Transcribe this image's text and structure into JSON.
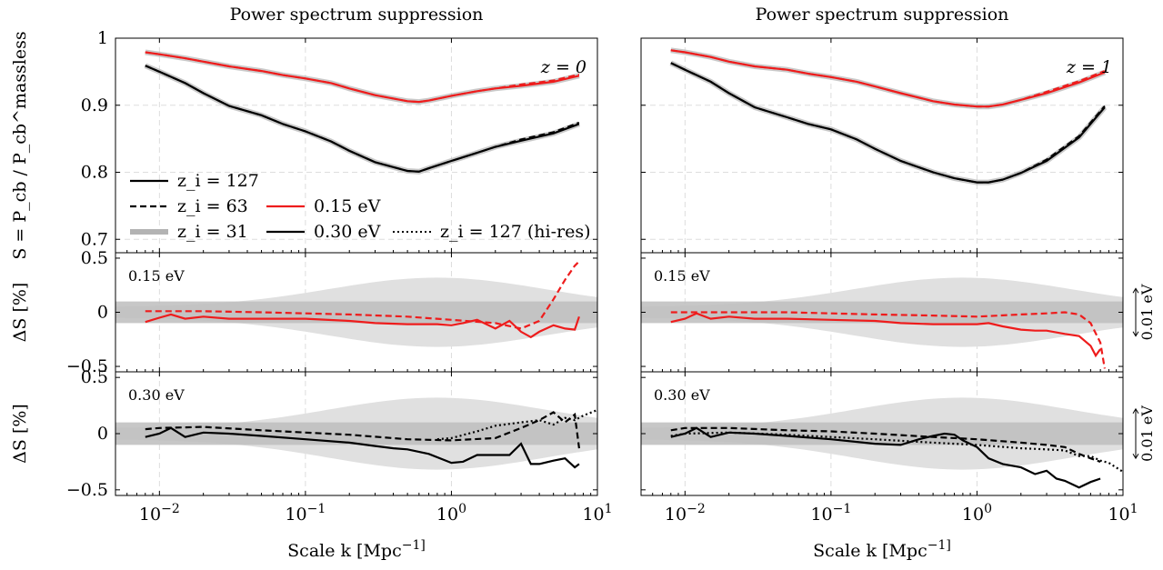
{
  "colors": {
    "red": "#ee1c1c",
    "black": "#000000",
    "gray_line": "#b3b3b3",
    "band_outer": "#e0e0e0",
    "band_inner": "#bdbdbd",
    "grid": "#dddddd"
  },
  "chart_data": [
    {
      "type": "line",
      "panel": "left",
      "title": "Power spectrum suppression",
      "xlabel": "Scale k [Mpc^-1]",
      "x_scale": "log",
      "xlim": [
        0.005,
        10
      ],
      "x_ticks": [
        "10^-2",
        "10^-1",
        "10^0",
        "10^1"
      ],
      "subplots": [
        {
          "ylabel": "S = P_cb / P_cb^massless",
          "ylim": [
            0.68,
            1.0
          ],
          "y_ticks": [
            "0.7",
            "0.8",
            "0.9",
            "1"
          ],
          "annotation": "z = 0",
          "legend_entries": [
            "z_i = 127",
            "z_i = 63",
            "z_i = 31",
            "0.15 eV",
            "0.30 eV",
            "z_i = 127 (hi-res)"
          ],
          "series": [
            {
              "x": [
                0.008,
                0.01,
                0.015,
                0.02,
                0.03,
                0.05,
                0.07,
                0.1,
                0.15,
                0.2,
                0.3,
                0.5,
                0.6,
                0.7,
                1.0,
                1.5,
                2,
                3,
                5,
                7.5
              ],
              "y": [
                0.979,
                0.976,
                0.97,
                0.965,
                0.958,
                0.951,
                0.945,
                0.94,
                0.933,
                0.925,
                0.915,
                0.906,
                0.905,
                0.907,
                0.914,
                0.921,
                0.925,
                0.929,
                0.935,
                0.944
              ]
            },
            {
              "x": [
                0.008,
                0.01,
                0.015,
                0.02,
                0.03,
                0.05,
                0.07,
                0.1,
                0.15,
                0.2,
                0.3,
                0.5,
                0.6,
                0.7,
                1.0,
                1.5,
                2,
                3,
                5,
                7.5
              ],
              "y": [
                0.959,
                0.95,
                0.933,
                0.918,
                0.899,
                0.885,
                0.872,
                0.861,
                0.846,
                0.832,
                0.815,
                0.802,
                0.801,
                0.806,
                0.817,
                0.829,
                0.838,
                0.847,
                0.858,
                0.872
              ]
            }
          ]
        },
        {
          "ylabel": "ΔS [%]",
          "ylim": [
            -0.55,
            0.55
          ],
          "y_ticks": [
            "0.5",
            "0",
            "−0.5"
          ],
          "annotation": "0.15 eV",
          "series": [
            {
              "name": "z_i = 127",
              "x": [
                0.008,
                0.01,
                0.012,
                0.015,
                0.02,
                0.03,
                0.05,
                0.1,
                0.2,
                0.3,
                0.5,
                0.8,
                1,
                1.2,
                1.5,
                2,
                2.5,
                3,
                3.5,
                4,
                5,
                6,
                7,
                7.5
              ],
              "y": [
                -0.09,
                -0.05,
                -0.02,
                -0.06,
                -0.04,
                -0.06,
                -0.06,
                -0.06,
                -0.08,
                -0.1,
                -0.11,
                -0.11,
                -0.12,
                -0.1,
                -0.07,
                -0.15,
                -0.08,
                -0.18,
                -0.23,
                -0.18,
                -0.12,
                -0.15,
                -0.16,
                -0.04
              ]
            },
            {
              "name": "z_i = 63",
              "x": [
                0.008,
                0.01,
                0.02,
                0.05,
                0.1,
                0.2,
                0.5,
                1,
                2,
                3,
                4,
                5,
                6,
                7,
                7.5
              ],
              "y": [
                0.01,
                0.01,
                0.01,
                0.0,
                -0.01,
                -0.02,
                -0.04,
                -0.07,
                -0.1,
                -0.15,
                -0.08,
                0.12,
                0.3,
                0.43,
                0.47
              ]
            }
          ]
        },
        {
          "ylabel": "ΔS [%]",
          "ylim": [
            -0.55,
            0.55
          ],
          "y_ticks": [
            "0.5",
            "0",
            "−0.5"
          ],
          "annotation": "0.30 eV",
          "series": [
            {
              "name": "z_i = 127",
              "x": [
                0.008,
                0.01,
                0.012,
                0.015,
                0.02,
                0.03,
                0.05,
                0.1,
                0.2,
                0.3,
                0.4,
                0.5,
                0.7,
                1,
                1.2,
                1.5,
                2,
                2.5,
                3,
                3.5,
                4,
                5,
                6,
                7,
                7.5
              ],
              "y": [
                -0.03,
                0.0,
                0.05,
                -0.03,
                0.01,
                0.0,
                -0.02,
                -0.05,
                -0.08,
                -0.11,
                -0.13,
                -0.14,
                -0.18,
                -0.26,
                -0.25,
                -0.19,
                -0.19,
                -0.19,
                -0.09,
                -0.27,
                -0.27,
                -0.24,
                -0.22,
                -0.3,
                -0.27
              ]
            },
            {
              "name": "z_i = 63",
              "x": [
                0.008,
                0.01,
                0.02,
                0.05,
                0.1,
                0.2,
                0.5,
                1,
                2,
                3,
                4,
                5,
                6,
                7,
                7.5
              ],
              "y": [
                0.04,
                0.05,
                0.06,
                0.03,
                0.01,
                -0.01,
                -0.05,
                -0.06,
                -0.04,
                0.05,
                0.12,
                0.19,
                0.1,
                0.17,
                -0.13
              ]
            },
            {
              "name": "z_i = 127 (hi-res)",
              "x": [
                0.8,
                1,
                1.5,
                2,
                3,
                4,
                5,
                6,
                7,
                8,
                10
              ],
              "y": [
                -0.05,
                -0.04,
                0.02,
                0.07,
                0.1,
                0.12,
                0.08,
                0.14,
                0.12,
                0.16,
                0.21
              ]
            }
          ]
        }
      ]
    },
    {
      "type": "line",
      "panel": "right",
      "title": "Power spectrum suppression",
      "xlabel": "Scale k [Mpc^-1]",
      "x_scale": "log",
      "xlim": [
        0.005,
        10
      ],
      "x_ticks": [
        "10^-2",
        "10^-1",
        "10^0",
        "10^1"
      ],
      "side_scale_label": "0.01 eV",
      "subplots": [
        {
          "ylim": [
            0.68,
            1.0
          ],
          "annotation": "z = 1",
          "series": [
            {
              "x": [
                0.008,
                0.01,
                0.015,
                0.02,
                0.03,
                0.05,
                0.07,
                0.1,
                0.15,
                0.2,
                0.3,
                0.5,
                0.7,
                1.0,
                1.2,
                1.5,
                2,
                3,
                5,
                7.5
              ],
              "y": [
                0.982,
                0.979,
                0.972,
                0.965,
                0.958,
                0.953,
                0.947,
                0.942,
                0.935,
                0.928,
                0.918,
                0.906,
                0.901,
                0.898,
                0.898,
                0.901,
                0.908,
                0.918,
                0.934,
                0.949
              ]
            },
            {
              "x": [
                0.008,
                0.01,
                0.015,
                0.02,
                0.03,
                0.05,
                0.07,
                0.1,
                0.15,
                0.2,
                0.3,
                0.5,
                0.7,
                1.0,
                1.2,
                1.5,
                2,
                3,
                5,
                7.5
              ],
              "y": [
                0.963,
                0.953,
                0.935,
                0.918,
                0.897,
                0.882,
                0.872,
                0.864,
                0.849,
                0.835,
                0.817,
                0.8,
                0.791,
                0.785,
                0.785,
                0.789,
                0.799,
                0.817,
                0.852,
                0.897
              ]
            }
          ]
        },
        {
          "ylim": [
            -0.55,
            0.55
          ],
          "annotation": "0.15 eV",
          "series": [
            {
              "name": "z_i = 127",
              "x": [
                0.008,
                0.01,
                0.012,
                0.015,
                0.02,
                0.03,
                0.05,
                0.1,
                0.2,
                0.3,
                0.5,
                1,
                1.2,
                1.5,
                2,
                2.5,
                3,
                4,
                5,
                6,
                6.5,
                7
              ],
              "y": [
                -0.09,
                -0.06,
                -0.01,
                -0.06,
                -0.04,
                -0.06,
                -0.06,
                -0.07,
                -0.08,
                -0.1,
                -0.11,
                -0.11,
                -0.1,
                -0.13,
                -0.16,
                -0.17,
                -0.17,
                -0.2,
                -0.22,
                -0.31,
                -0.4,
                -0.34
              ]
            },
            {
              "name": "z_i = 63",
              "x": [
                0.008,
                0.01,
                0.02,
                0.05,
                0.1,
                0.2,
                0.5,
                1,
                2,
                3,
                4,
                5,
                6,
                7,
                7.5
              ],
              "y": [
                0.0,
                0.0,
                0.0,
                0.0,
                -0.01,
                -0.02,
                -0.03,
                -0.04,
                -0.02,
                -0.01,
                0.0,
                -0.02,
                -0.1,
                -0.28,
                -0.52
              ]
            }
          ]
        },
        {
          "ylim": [
            -0.55,
            0.55
          ],
          "annotation": "0.30 eV",
          "series": [
            {
              "name": "z_i = 127",
              "x": [
                0.008,
                0.01,
                0.012,
                0.015,
                0.02,
                0.03,
                0.05,
                0.1,
                0.2,
                0.3,
                0.4,
                0.5,
                0.6,
                0.7,
                0.8,
                1,
                1.2,
                1.5,
                2,
                2.5,
                3,
                3.5,
                4,
                5,
                6,
                7
              ],
              "y": [
                -0.03,
                0.0,
                0.05,
                -0.03,
                0.01,
                0.0,
                -0.02,
                -0.05,
                -0.09,
                -0.1,
                -0.05,
                -0.02,
                0.0,
                -0.01,
                -0.06,
                -0.12,
                -0.22,
                -0.27,
                -0.3,
                -0.36,
                -0.33,
                -0.4,
                -0.42,
                -0.48,
                -0.43,
                -0.4
              ]
            },
            {
              "name": "z_i = 63",
              "x": [
                0.008,
                0.01,
                0.02,
                0.05,
                0.1,
                0.2,
                0.5,
                1,
                2,
                3,
                4,
                5,
                6,
                7
              ],
              "y": [
                0.03,
                0.05,
                0.05,
                0.03,
                0.02,
                0.0,
                -0.03,
                -0.05,
                -0.08,
                -0.1,
                -0.12,
                -0.18,
                -0.22,
                -0.25
              ]
            },
            {
              "name": "z_i = 127 (hi-res)",
              "x": [
                0.008,
                0.01,
                0.02,
                0.05,
                0.1,
                0.2,
                0.5,
                1,
                2,
                3,
                4,
                5,
                6,
                7,
                8,
                10
              ],
              "y": [
                -0.02,
                0.0,
                0.01,
                -0.01,
                -0.03,
                -0.05,
                -0.08,
                -0.1,
                -0.13,
                -0.14,
                -0.15,
                -0.2,
                -0.2,
                -0.24,
                -0.26,
                -0.34
              ]
            }
          ]
        }
      ]
    }
  ]
}
